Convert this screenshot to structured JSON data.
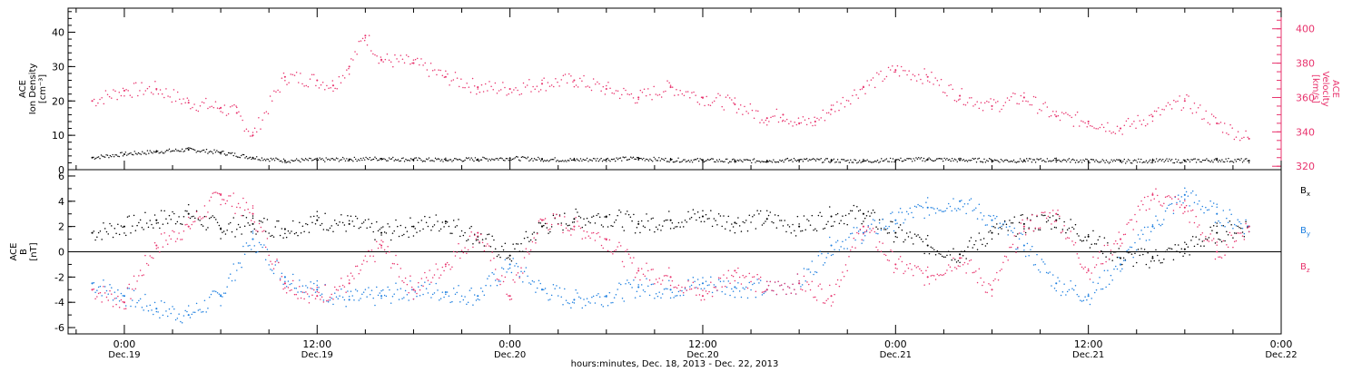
{
  "chart_data": [
    {
      "type": "scatter",
      "panel": "top",
      "ylabel_left": [
        "ACE",
        "Ion Density",
        "[cm⁻³]"
      ],
      "ylabel_right": [
        "ACE",
        "Velocity",
        "[km/s]"
      ],
      "ylim_left": [
        0,
        47
      ],
      "ylim_right": [
        318,
        412
      ],
      "yticks_left": [
        0,
        10,
        20,
        30,
        40
      ],
      "yticks_right": [
        320,
        340,
        360,
        380,
        400
      ],
      "series": [
        {
          "axis": "left",
          "color": "#000000",
          "x": [
            -2,
            0,
            2,
            4,
            6,
            8,
            10,
            12,
            14,
            16,
            18,
            20,
            22,
            24,
            26,
            28,
            30,
            32,
            34,
            36,
            38,
            40,
            42,
            44,
            46,
            48,
            50,
            52,
            54,
            56,
            58,
            60,
            62,
            64,
            66,
            68,
            70
          ],
          "y": [
            3.5,
            4.5,
            5.2,
            5.8,
            5.0,
            3.5,
            2.6,
            2.8,
            3.0,
            3.2,
            2.9,
            2.8,
            3.0,
            3.3,
            3.0,
            2.8,
            3.0,
            3.2,
            2.8,
            2.7,
            2.5,
            2.6,
            2.8,
            2.6,
            2.5,
            2.8,
            3.0,
            2.8,
            2.7,
            2.6,
            2.8,
            2.5,
            2.4,
            2.6,
            2.5,
            2.8,
            2.6
          ]
        },
        {
          "axis": "right",
          "color": "#e8336d",
          "x": [
            -2,
            0,
            2,
            4,
            6,
            7,
            8,
            10,
            12,
            13,
            14,
            15,
            16,
            18,
            20,
            22,
            24,
            26,
            28,
            30,
            32,
            34,
            36,
            38,
            40,
            41,
            42,
            43,
            44,
            46,
            48,
            50,
            52,
            54,
            56,
            58,
            60,
            62,
            64,
            66,
            68,
            70
          ],
          "y": [
            358,
            364,
            365,
            357,
            354,
            351,
            338,
            372,
            370,
            367,
            378,
            396,
            382,
            380,
            372,
            366,
            365,
            368,
            370,
            365,
            360,
            366,
            360,
            356,
            348,
            350,
            345,
            346,
            353,
            366,
            376,
            372,
            361,
            355,
            360,
            349,
            346,
            342,
            349,
            358,
            345,
            336
          ]
        }
      ]
    },
    {
      "type": "scatter",
      "panel": "bottom",
      "ylabel_left": [
        "ACE",
        "B",
        "[nT]"
      ],
      "ylim": [
        -6.5,
        6.5
      ],
      "yticks": [
        -6,
        -4,
        -2,
        0,
        2,
        4,
        6
      ],
      "zero_line": true,
      "legend": [
        {
          "label": "B",
          "sub": "x",
          "color": "#000000"
        },
        {
          "label": "B",
          "sub": "y",
          "color": "#1d7fe0"
        },
        {
          "label": "B",
          "sub": "z",
          "color": "#e8336d"
        }
      ],
      "series": [
        {
          "name": "Bx",
          "color": "#000000",
          "x": [
            -2,
            0,
            2,
            4,
            6,
            8,
            10,
            12,
            14,
            16,
            18,
            20,
            22,
            24,
            26,
            28,
            30,
            32,
            34,
            36,
            38,
            40,
            42,
            44,
            46,
            48,
            50,
            52,
            54,
            56,
            58,
            60,
            62,
            64,
            66,
            68,
            70
          ],
          "y": [
            1.5,
            2.0,
            2.5,
            3.0,
            1.8,
            2.2,
            1.8,
            2.5,
            2.2,
            1.5,
            2.0,
            2.4,
            1.2,
            -0.3,
            2.0,
            2.6,
            2.8,
            2.2,
            2.5,
            2.8,
            2.3,
            2.6,
            2.0,
            2.8,
            3.0,
            1.5,
            0.5,
            -0.2,
            1.5,
            2.2,
            2.5,
            1.2,
            -0.5,
            -0.5,
            0.2,
            1.5,
            2.0
          ]
        },
        {
          "name": "By",
          "color": "#1d7fe0",
          "x": [
            -2,
            0,
            2,
            4,
            6,
            8,
            10,
            12,
            14,
            16,
            18,
            20,
            22,
            24,
            26,
            28,
            30,
            32,
            34,
            36,
            38,
            40,
            42,
            44,
            46,
            48,
            50,
            52,
            54,
            56,
            58,
            60,
            62,
            64,
            66,
            68,
            70
          ],
          "y": [
            -2.5,
            -3.5,
            -4.5,
            -5.0,
            -3.5,
            1.0,
            -2.0,
            -3.0,
            -3.8,
            -3.5,
            -3.0,
            -3.2,
            -3.5,
            -1.0,
            -3.0,
            -3.8,
            -3.5,
            -2.8,
            -3.0,
            -2.5,
            -2.8,
            -3.0,
            -2.5,
            0.5,
            1.5,
            2.5,
            3.5,
            4.0,
            2.5,
            0.5,
            -2.5,
            -3.5,
            -1.0,
            2.0,
            4.5,
            3.0,
            2.0
          ]
        },
        {
          "name": "Bz",
          "color": "#e8336d",
          "x": [
            -2,
            0,
            2,
            4,
            6,
            8,
            10,
            12,
            14,
            16,
            18,
            20,
            22,
            24,
            26,
            28,
            30,
            32,
            34,
            36,
            38,
            40,
            42,
            44,
            46,
            48,
            50,
            52,
            54,
            56,
            58,
            60,
            62,
            64,
            66,
            68,
            70
          ],
          "y": [
            -3.0,
            -4.0,
            0.5,
            2.0,
            4.5,
            3.0,
            -2.5,
            -3.5,
            -2.5,
            0.5,
            -3.0,
            -1.0,
            1.5,
            -3.5,
            2.5,
            2.0,
            1.0,
            -1.5,
            -2.0,
            -3.5,
            -1.5,
            -3.0,
            -2.5,
            -3.5,
            2.0,
            -1.0,
            -2.0,
            -0.5,
            -3.0,
            2.0,
            3.0,
            -1.5,
            1.0,
            4.5,
            3.5,
            0.0,
            2.0
          ]
        }
      ]
    }
  ],
  "x_axis": {
    "range_hours": [
      -3.5,
      72
    ],
    "ticks": [
      {
        "hour": 0,
        "time": "0:00",
        "day": "Dec.19"
      },
      {
        "hour": 12,
        "time": "12:00",
        "day": "Dec.19"
      },
      {
        "hour": 24,
        "time": "0:00",
        "day": "Dec.20"
      },
      {
        "hour": 36,
        "time": "12:00",
        "day": "Dec.20"
      },
      {
        "hour": 48,
        "time": "0:00",
        "day": "Dec.21"
      },
      {
        "hour": 60,
        "time": "12:00",
        "day": "Dec.21"
      },
      {
        "hour": 72,
        "time": "0:00",
        "day": "Dec.22"
      }
    ],
    "title": "hours:minutes, Dec. 18, 2013 - Dec. 22, 2013"
  },
  "colors": {
    "velocity": "#e8336d",
    "density": "#000000",
    "bx": "#000000",
    "by": "#1d7fe0",
    "bz": "#e8336d"
  }
}
